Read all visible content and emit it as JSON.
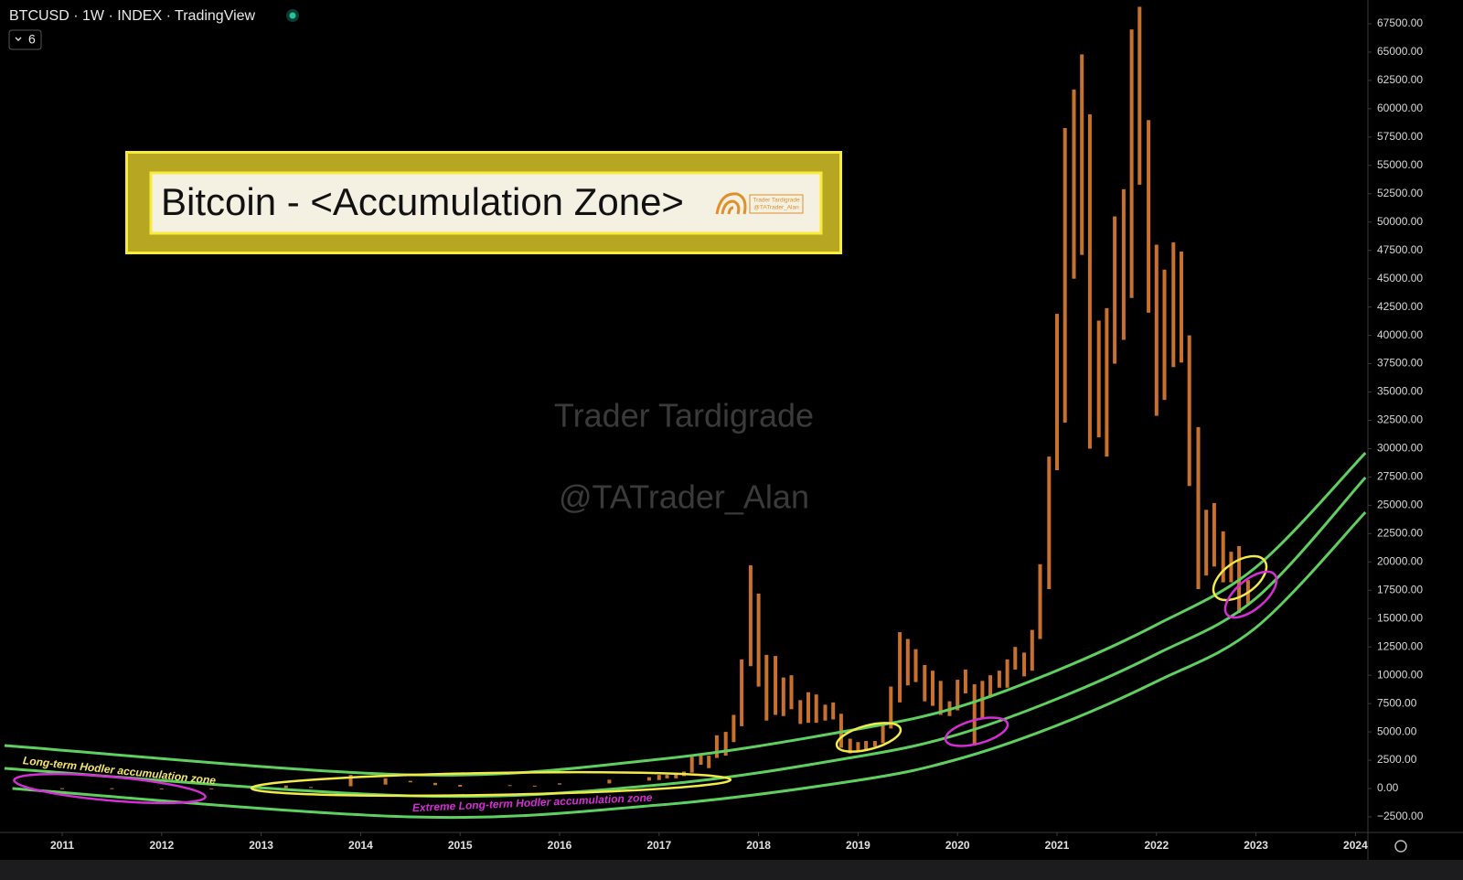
{
  "header": {
    "symbol": "BTCUSD · 1W · INDEX · TradingView",
    "indicator_count": "6"
  },
  "banner": {
    "title": "Bitcoin - <Accumulation Zone>",
    "logo_name": "Trader Tardigrade",
    "logo_handle": "@TATrader_Alan"
  },
  "watermark": {
    "name": "Trader Tardigrade",
    "handle": "@TATrader_Alan"
  },
  "chart_data": {
    "type": "range",
    "annotations": [
      "Long-term Hodler accumulation zone",
      "Extreme Long-term Hodler accumulation zone"
    ],
    "price_color": "#c8702e",
    "x": [
      2011.0,
      2011.5,
      2012.0,
      2012.5,
      2013.0,
      2013.25,
      2013.5,
      2013.9,
      2014.25,
      2014.5,
      2014.75,
      2015.0,
      2015.5,
      2015.75,
      2016.0,
      2016.5,
      2016.9,
      2017.0,
      2017.08,
      2017.17,
      2017.25,
      2017.33,
      2017.42,
      2017.5,
      2017.58,
      2017.67,
      2017.75,
      2017.83,
      2017.92,
      2018.0,
      2018.08,
      2018.17,
      2018.25,
      2018.33,
      2018.42,
      2018.5,
      2018.58,
      2018.67,
      2018.75,
      2018.83,
      2018.92,
      2019.0,
      2019.08,
      2019.17,
      2019.25,
      2019.33,
      2019.42,
      2019.5,
      2019.58,
      2019.67,
      2019.75,
      2019.83,
      2019.92,
      2020.0,
      2020.08,
      2020.17,
      2020.25,
      2020.33,
      2020.42,
      2020.5,
      2020.58,
      2020.67,
      2020.75,
      2020.83,
      2020.92,
      2021.0,
      2021.08,
      2021.17,
      2021.25,
      2021.33,
      2021.42,
      2021.5,
      2021.58,
      2021.67,
      2021.75,
      2021.83,
      2021.92,
      2022.0,
      2022.08,
      2022.17,
      2022.25,
      2022.33,
      2022.42,
      2022.5,
      2022.58,
      2022.67,
      2022.75,
      2022.83,
      2022.92
    ],
    "high": [
      30,
      30,
      7,
      15,
      20,
      260,
      130,
      1200,
      900,
      680,
      500,
      320,
      300,
      250,
      460,
      780,
      1000,
      1200,
      1200,
      1300,
      1500,
      2800,
      3000,
      2900,
      4700,
      5000,
      6500,
      11400,
      19700,
      17200,
      11800,
      11700,
      9800,
      10000,
      7800,
      8500,
      8300,
      7400,
      7600,
      6600,
      4400,
      4100,
      4200,
      4200,
      5600,
      9000,
      13800,
      13200,
      12300,
      10900,
      10400,
      9500,
      7700,
      9600,
      10500,
      9200,
      9500,
      10000,
      10400,
      11400,
      12500,
      12000,
      14000,
      19800,
      29300,
      41900,
      58300,
      61700,
      64800,
      59500,
      41300,
      42400,
      50500,
      52900,
      67000,
      69000,
      59000,
      48000,
      45800,
      48200,
      47400,
      40000,
      31900,
      24600,
      25200,
      22700,
      20900,
      21400,
      18400
    ],
    "low": [
      0,
      10,
      4,
      5,
      13,
      50,
      65,
      200,
      350,
      550,
      300,
      170,
      220,
      210,
      350,
      450,
      700,
      750,
      900,
      900,
      1100,
      1400,
      2100,
      1800,
      2700,
      2900,
      4100,
      5500,
      10800,
      9000,
      6000,
      6500,
      6400,
      7000,
      5700,
      5800,
      5800,
      6000,
      6100,
      3600,
      3100,
      3300,
      3400,
      3700,
      4000,
      5300,
      7600,
      9100,
      9400,
      7700,
      7300,
      6500,
      6400,
      6900,
      8400,
      3800,
      6200,
      8100,
      8900,
      8900,
      10500,
      9900,
      10400,
      13200,
      17600,
      28100,
      32300,
      45000,
      47100,
      30000,
      31000,
      29300,
      37500,
      39600,
      43300,
      53300,
      42000,
      32900,
      34300,
      37200,
      37600,
      26700,
      17600,
      18800,
      19600,
      18200,
      18200,
      15500,
      16300
    ],
    "curves": [
      {
        "color": "#5fcf5f",
        "x": [
          2010.42,
          2014.5,
          2017.0,
          2019.0,
          2020.0,
          2021.0,
          2022.0,
          2023.0,
          2024.1
        ],
        "values": [
          3795,
          1211,
          2584,
          5248,
          7186,
          10416,
          14453,
          19540,
          29630
        ]
      },
      {
        "color": "#5fcf5f",
        "x": [
          2010.42,
          2014.5,
          2017.0,
          2019.0,
          2020.0,
          2021.0,
          2022.0,
          2023.0,
          2024.1
        ],
        "values": [
          1776,
          -646,
          323,
          2826,
          4764,
          7913,
          11869,
          16794,
          27450
        ]
      },
      {
        "color": "#5fcf5f",
        "x": [
          2010.5,
          2014.5,
          2017.0,
          2019.0,
          2020.0,
          2021.0,
          2022.0,
          2023.0,
          2024.1
        ],
        "values": [
          0,
          -2503,
          -1453,
          727,
          2584,
          5571,
          9447,
          14211,
          24384
        ]
      }
    ],
    "xlim": [
      2010.375,
      2024.125
    ],
    "xticks": [
      2011,
      2012,
      2013,
      2014,
      2015,
      2016,
      2017,
      2018,
      2019,
      2020,
      2021,
      2022,
      2023,
      2024
    ],
    "ylim": [
      -3875,
      69600
    ],
    "yticks": [
      {
        "value": -2500,
        "label": "−2500.00"
      },
      {
        "value": 0,
        "label": "0.00"
      },
      {
        "value": 2500,
        "label": "2500.00"
      },
      {
        "value": 5000,
        "label": "5000.00"
      },
      {
        "value": 7500,
        "label": "7500.00"
      },
      {
        "value": 10000,
        "label": "10000.00"
      },
      {
        "value": 12500,
        "label": "12500.00"
      },
      {
        "value": 15000,
        "label": "15000.00"
      },
      {
        "value": 17500,
        "label": "17500.00"
      },
      {
        "value": 20000,
        "label": "20000.00"
      },
      {
        "value": 22500,
        "label": "22500.00"
      },
      {
        "value": 25000,
        "label": "25000.00"
      },
      {
        "value": 27500,
        "label": "27500.00"
      },
      {
        "value": 30000,
        "label": "30000.00"
      },
      {
        "value": 32500,
        "label": "32500.00"
      },
      {
        "value": 35000,
        "label": "35000.00"
      },
      {
        "value": 37500,
        "label": "37500.00"
      },
      {
        "value": 40000,
        "label": "40000.00"
      },
      {
        "value": 42500,
        "label": "42500.00"
      },
      {
        "value": 45000,
        "label": "45000.00"
      },
      {
        "value": 47500,
        "label": "47500.00"
      },
      {
        "value": 50000,
        "label": "50000.00"
      },
      {
        "value": 52500,
        "label": "52500.00"
      },
      {
        "value": 55000,
        "label": "55000.00"
      },
      {
        "value": 57500,
        "label": "57500.00"
      },
      {
        "value": 60000,
        "label": "60000.00"
      },
      {
        "value": 62500,
        "label": "62500.00"
      },
      {
        "value": 65000,
        "label": "65000.00"
      },
      {
        "value": 67500,
        "label": "67500.00"
      }
    ]
  }
}
